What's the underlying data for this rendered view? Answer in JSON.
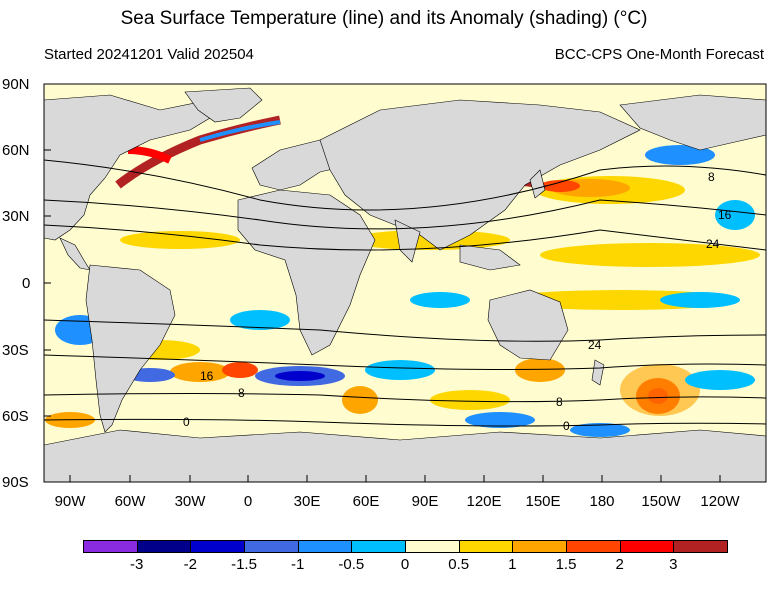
{
  "header": {
    "title": "Sea Surface Temperature (line) and its Anomaly (shading) (°C)",
    "started": "Started 20241201  Valid 202504",
    "forecast": "BCC-CPS One-Month Forecast"
  },
  "map": {
    "lat_labels": [
      "90N",
      "60N",
      "30N",
      "0",
      "30S",
      "60S",
      "90S"
    ],
    "lon_labels": [
      "90W",
      "60W",
      "30W",
      "0",
      "30E",
      "60E",
      "90E",
      "120E",
      "150E",
      "180",
      "150W",
      "120W"
    ],
    "contour_labels": [
      "8",
      "16",
      "24",
      "24",
      "16",
      "8",
      "8",
      "0",
      "0"
    ],
    "colors": {
      "land": "#d9d9d9",
      "ocean_neutral": "#fffdd0"
    }
  },
  "colorbar": {
    "ticks": [
      "-3",
      "-2",
      "-1.5",
      "-1",
      "-0.5",
      "0",
      "0.5",
      "1",
      "1.5",
      "2",
      "3"
    ],
    "colors": [
      "#8a2be2",
      "#00008b",
      "#0000cd",
      "#4169e1",
      "#1e90ff",
      "#00bfff",
      "#fffdd0",
      "#ffd700",
      "#ffa500",
      "#ff4500",
      "#ff0000",
      "#b22222"
    ]
  }
}
